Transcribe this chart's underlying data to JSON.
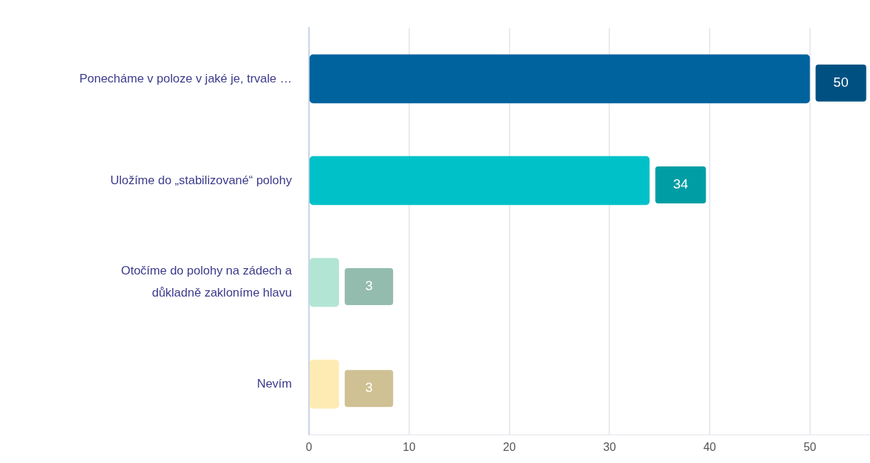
{
  "chart_data": {
    "type": "bar",
    "orientation": "horizontal",
    "categories": [
      "Ponecháme v poloze v jaké je, trvale …",
      "Uložíme do „stabilizované“ polohy",
      "Otočíme do polohy na zádech a důkladně zakloníme hlavu",
      "Nevím"
    ],
    "values": [
      50,
      34,
      3,
      3
    ],
    "colors": [
      "#00639e",
      "#00c1c8",
      "#b3e5d5",
      "#fdebb3"
    ],
    "xlim": [
      0,
      56
    ],
    "xticks": [
      0,
      10,
      20,
      30,
      40,
      50
    ],
    "grid": "x",
    "data_labels": true,
    "legend": false
  }
}
